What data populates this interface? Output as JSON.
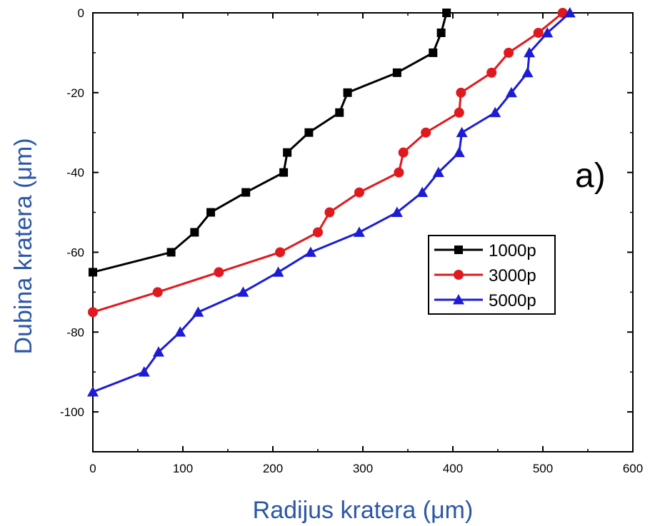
{
  "chart_data": {
    "type": "line",
    "title": "",
    "xlabel": "Radijus kratera (μm)",
    "ylabel": "Dubina kratera (μm)",
    "xlim": [
      0,
      600
    ],
    "ylim": [
      -110,
      0
    ],
    "x_ticks": [
      0,
      100,
      200,
      300,
      400,
      500,
      600
    ],
    "y_ticks": [
      0,
      -20,
      -40,
      -60,
      -80,
      -100
    ],
    "x_tick_labels": [
      "0",
      "100",
      "200",
      "300",
      "400",
      "500",
      "600"
    ],
    "y_tick_labels": [
      "0",
      "-20",
      "-40",
      "-60",
      "-80",
      "-100"
    ],
    "grid": false,
    "legend_position": "right",
    "annotation": "a)",
    "axis_label_color": "#2b57a6",
    "series": [
      {
        "name": "1000p",
        "color": "#000000",
        "marker": "square",
        "points": [
          [
            0,
            -65
          ],
          [
            87,
            -60
          ],
          [
            113,
            -55
          ],
          [
            131,
            -50
          ],
          [
            170,
            -45
          ],
          [
            212,
            -40
          ],
          [
            216,
            -35
          ],
          [
            240,
            -30
          ],
          [
            274,
            -25
          ],
          [
            283,
            -20
          ],
          [
            338,
            -15
          ],
          [
            378,
            -10
          ],
          [
            387,
            -5
          ],
          [
            393,
            0
          ]
        ]
      },
      {
        "name": "3000p",
        "color": "#e0191f",
        "marker": "circle",
        "points": [
          [
            0,
            -75
          ],
          [
            72,
            -70
          ],
          [
            140,
            -65
          ],
          [
            208,
            -60
          ],
          [
            250,
            -55
          ],
          [
            263,
            -50
          ],
          [
            296,
            -45
          ],
          [
            340,
            -40
          ],
          [
            345,
            -35
          ],
          [
            370,
            -30
          ],
          [
            407,
            -25
          ],
          [
            409,
            -20
          ],
          [
            443,
            -15
          ],
          [
            462,
            -10
          ],
          [
            495,
            -5
          ],
          [
            522,
            0
          ]
        ]
      },
      {
        "name": "5000p",
        "color": "#1c1cd6",
        "marker": "triangle",
        "points": [
          [
            0,
            -95
          ],
          [
            57,
            -90
          ],
          [
            73,
            -85
          ],
          [
            97,
            -80
          ],
          [
            117,
            -75
          ],
          [
            167,
            -70
          ],
          [
            206,
            -65
          ],
          [
            242,
            -60
          ],
          [
            296,
            -55
          ],
          [
            338,
            -50
          ],
          [
            366,
            -45
          ],
          [
            384,
            -40
          ],
          [
            407,
            -35
          ],
          [
            410,
            -30
          ],
          [
            447,
            -25
          ],
          [
            465,
            -20
          ],
          [
            483,
            -15
          ],
          [
            485,
            -10
          ],
          [
            505,
            -5
          ],
          [
            530,
            0
          ]
        ]
      }
    ]
  }
}
